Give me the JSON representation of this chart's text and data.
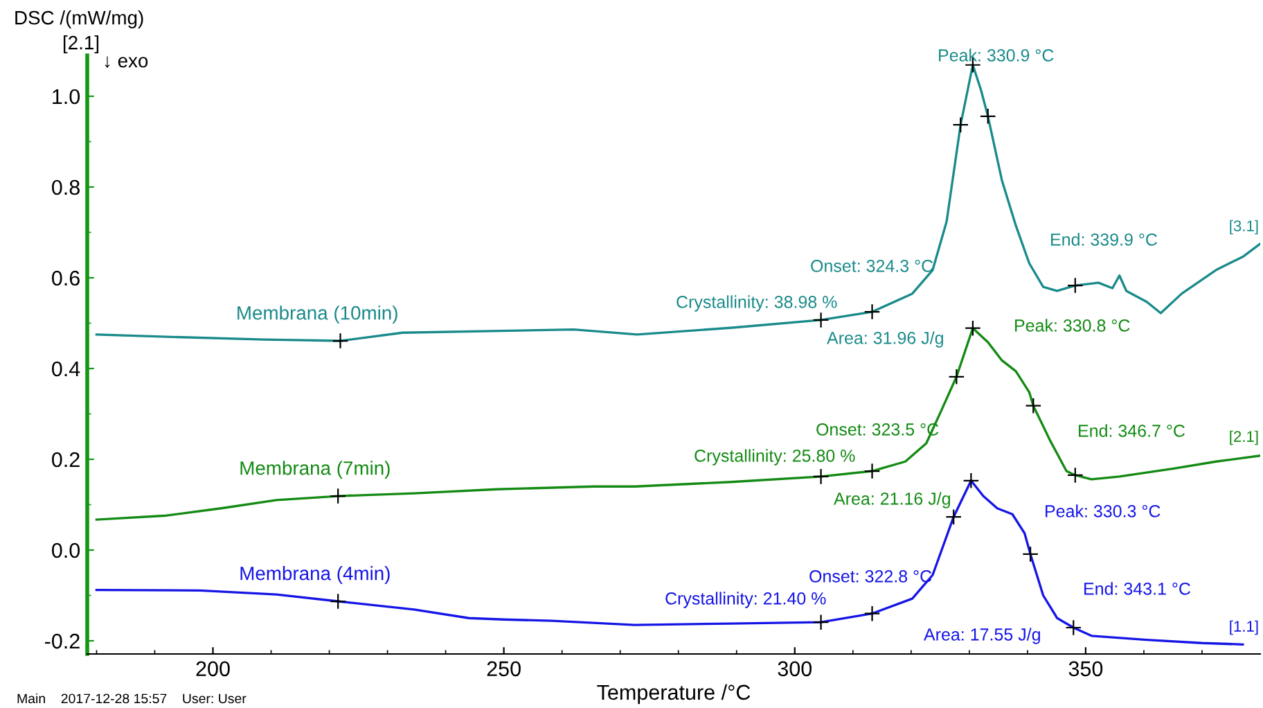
{
  "chart_data": {
    "type": "line",
    "ylabel": "DSC /(mW/mg)",
    "xlabel": "Temperature /°C",
    "xlim": [
      178.4,
      380
    ],
    "ylim": [
      -0.229,
      1.09
    ],
    "xticks": [
      {
        "value": 180,
        "label": null
      },
      {
        "value": 190,
        "label": null
      },
      200,
      {
        "value": 210,
        "label": null
      },
      {
        "value": 220,
        "label": null
      },
      {
        "value": 230,
        "label": null
      },
      {
        "value": 240,
        "label": null
      },
      250,
      {
        "value": 260,
        "label": null
      },
      {
        "value": 270,
        "label": null
      },
      {
        "value": 280,
        "label": null
      },
      {
        "value": 290,
        "label": null
      },
      300,
      {
        "value": 310,
        "label": null
      },
      {
        "value": 320,
        "label": null
      },
      {
        "value": 330,
        "label": null
      },
      {
        "value": 340,
        "label": null
      },
      350,
      {
        "value": 360,
        "label": null
      },
      {
        "value": 370,
        "label": null
      }
    ],
    "yticks": [
      {
        "value": -0.2,
        "label": "-0.2"
      },
      {
        "value": -0.1,
        "label": null
      },
      {
        "value": 0.0,
        "label": "0.0"
      },
      {
        "value": 0.1,
        "label": null
      },
      {
        "value": 0.2,
        "label": "0.2"
      },
      {
        "value": 0.3,
        "label": null
      },
      {
        "value": 0.4,
        "label": "0.4"
      },
      {
        "value": 0.5,
        "label": null
      },
      {
        "value": 0.6,
        "label": "0.6"
      },
      {
        "value": 0.7,
        "label": null
      },
      {
        "value": 0.8,
        "label": "0.8"
      },
      {
        "value": 0.9,
        "label": null
      },
      {
        "value": 1.0,
        "label": "1.0"
      }
    ],
    "grid": false,
    "legend": false,
    "series": [
      {
        "name": "Membrana (10min)",
        "color": "#1a8a8a",
        "x": [
          180,
          192,
          208.8,
          221.9,
          232.6,
          262,
          272.9,
          289.3,
          304.5,
          313.3,
          320.2,
          323.7,
          326.1,
          328.5,
          330.6,
          332,
          333.2,
          335.6,
          338,
          340.3,
          342.7,
          345.1,
          348.2,
          352.2,
          354.6,
          355.8,
          357,
          360.5,
          362.9,
          366.5,
          372.4,
          377.1,
          380
        ],
        "values": [
          0.475,
          0.47,
          0.464,
          0.461,
          0.479,
          0.486,
          0.475,
          0.49,
          0.507,
          0.525,
          0.565,
          0.617,
          0.724,
          0.937,
          1.069,
          1.014,
          0.956,
          0.815,
          0.715,
          0.632,
          0.58,
          0.571,
          0.583,
          0.589,
          0.577,
          0.605,
          0.571,
          0.547,
          0.522,
          0.565,
          0.617,
          0.647,
          0.675
        ]
      },
      {
        "name": "Membrana (7min)",
        "color": "#138a13",
        "x": [
          180,
          192,
          201.4,
          210.9,
          221.5,
          234.6,
          248.8,
          265.4,
          272.5,
          289,
          304.5,
          313.3,
          319,
          322.6,
          325,
          327.8,
          330.6,
          333.2,
          335.6,
          338,
          340.3,
          341,
          343.9,
          346.7,
          348.2,
          351,
          355.8,
          365.3,
          372.4,
          380
        ],
        "values": [
          0.067,
          0.076,
          0.092,
          0.11,
          0.119,
          0.125,
          0.134,
          0.14,
          0.14,
          0.15,
          0.162,
          0.174,
          0.195,
          0.235,
          0.302,
          0.382,
          0.489,
          0.458,
          0.418,
          0.394,
          0.348,
          0.318,
          0.241,
          0.174,
          0.165,
          0.156,
          0.162,
          0.18,
          0.195,
          0.208
        ]
      },
      {
        "name": "Membrana (4min)",
        "color": "#1515e6",
        "x": [
          180,
          197.8,
          210.9,
          221.5,
          234.6,
          244,
          250,
          258.3,
          272.5,
          289,
          304.5,
          313.3,
          320.2,
          323.7,
          327.3,
          330.3,
          332.4,
          334.8,
          337.4,
          339.5,
          340.5,
          342.7,
          345.1,
          347.9,
          351,
          360.5,
          370,
          377
        ],
        "values": [
          -0.088,
          -0.089,
          -0.098,
          -0.113,
          -0.131,
          -0.15,
          -0.153,
          -0.156,
          -0.165,
          -0.162,
          -0.159,
          -0.14,
          -0.107,
          -0.055,
          0.073,
          0.153,
          0.119,
          0.092,
          0.079,
          0.037,
          -0.009,
          -0.1,
          -0.15,
          -0.171,
          -0.189,
          -0.198,
          -0.205,
          -0.208
        ]
      },
      {
        "type": "scatter",
        "marker": "cross",
        "color": "#000000",
        "x": [
          221.9,
          304.5,
          313.3,
          328.5,
          330.6,
          333.2,
          348.2,
          221.5,
          304.5,
          313.3,
          327.8,
          330.6,
          341,
          348.2,
          221.5,
          304.5,
          313.3,
          327.3,
          330.3,
          340.5,
          347.9
        ],
        "values": [
          0.461,
          0.507,
          0.525,
          0.937,
          1.069,
          0.956,
          0.583,
          0.119,
          0.162,
          0.174,
          0.382,
          0.489,
          0.318,
          0.165,
          -0.113,
          -0.159,
          -0.14,
          0.073,
          0.153,
          -0.009,
          -0.171
        ]
      }
    ],
    "annotations": [
      "Peak: 330.9 °C",
      "Onset: 324.3 °C",
      "End: 339.9 °C",
      "Crystallinity: 38.98 %",
      "Area: 31.96 J/g",
      "[3.1]",
      "Peak: 330.8 °C",
      "Onset: 323.5 °C",
      "Crystallinity: 25.80 %",
      "Area: 21.16 J/g",
      "End: 346.7 °C",
      "[2.1]",
      "Peak: 330.3 °C",
      "Onset: 322.8 °C",
      "Crystallinity: 21.40 %",
      "End: 343.1 °C",
      "Area: 17.55 J/g",
      "[1.1]",
      "[2.1]",
      "↓ exo",
      "Main    2017-12-28 15:57    User: User"
    ]
  }
}
